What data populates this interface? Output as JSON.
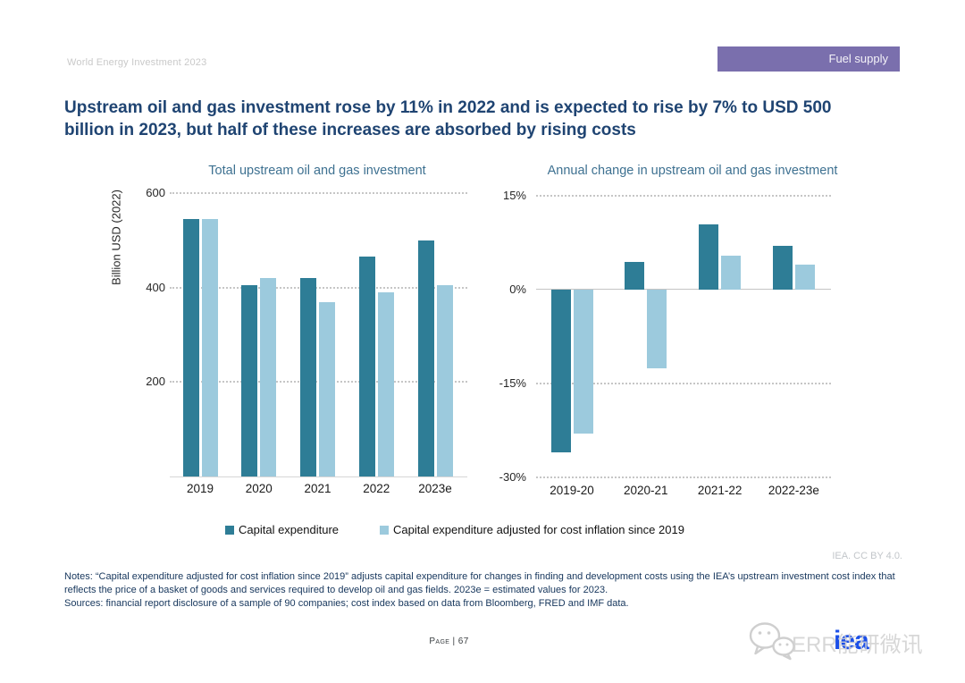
{
  "header": {
    "report_title": "World Energy Investment 2023",
    "section_badge": "Fuel supply"
  },
  "headline": "Upstream oil and gas investment rose by 11% in 2022 and is expected to rise by 7% to USD 500 billion in 2023, but half of these increases are absorbed by rising costs",
  "colors": {
    "capex_bar": "#2E7D96",
    "adjusted_bar": "#9CCADD",
    "badge_bg": "#7A6FAD",
    "headline_text": "#1F4472",
    "chart_title_text": "#3E7191",
    "notes_text": "#16365C",
    "muted_gray": "#C9C9C9",
    "iea_logo_blue": "#1B4FE8"
  },
  "chart_data": [
    {
      "type": "bar",
      "title": "Total upstream oil and gas investment",
      "ylabel": "Billion USD (2022)",
      "categories": [
        "2019",
        "2020",
        "2021",
        "2022",
        "2023e"
      ],
      "series": [
        {
          "name": "Capital expenditure",
          "values": [
            545,
            405,
            420,
            465,
            500
          ]
        },
        {
          "name": "Capital expenditure adjusted for cost inflation since 2019",
          "values": [
            545,
            420,
            370,
            390,
            405
          ]
        }
      ],
      "ylim": [
        0,
        600
      ],
      "yticks": [
        600,
        400,
        200
      ],
      "grid": "dotted-horizontal",
      "legend_position": "bottom"
    },
    {
      "type": "bar",
      "title": "Annual change in upstream oil and gas investment",
      "ylabel": "",
      "categories": [
        "2019-20",
        "2020-21",
        "2021-22",
        "2022-23e"
      ],
      "series": [
        {
          "name": "Capital expenditure",
          "values": [
            -26,
            4.5,
            10.5,
            7
          ]
        },
        {
          "name": "Capital expenditure adjusted for cost inflation since 2019",
          "values": [
            -23,
            -12.5,
            5.5,
            4
          ]
        }
      ],
      "ylim": [
        -30,
        15
      ],
      "yticks": [
        15,
        0,
        -15,
        -30
      ],
      "ytick_format": "percent",
      "grid": "dotted-horizontal",
      "legend_position": "bottom"
    }
  ],
  "legend": [
    {
      "label": "Capital expenditure",
      "color": "#2E7D96"
    },
    {
      "label": "Capital expenditure adjusted for cost inflation since 2019",
      "color": "#9CCADD"
    }
  ],
  "attribution": "IEA. CC BY 4.0.",
  "notes": "Notes: “Capital expenditure adjusted for cost inflation since 2019” adjusts capital expenditure for changes in finding and development costs using the IEA’s upstream investment cost index that reflects the price of a basket of goods and services required to develop oil and gas fields. 2023e = estimated values for 2023.",
  "sources": "Sources: financial report disclosure of a sample of 90 companies; cost index based on data from Bloomberg, FRED and IMF data.",
  "footer": {
    "page_label": "Page | 67"
  },
  "watermark": {
    "text": "ERR能研微讯",
    "logo_text": "iea",
    "icon": "wechat-icon"
  }
}
